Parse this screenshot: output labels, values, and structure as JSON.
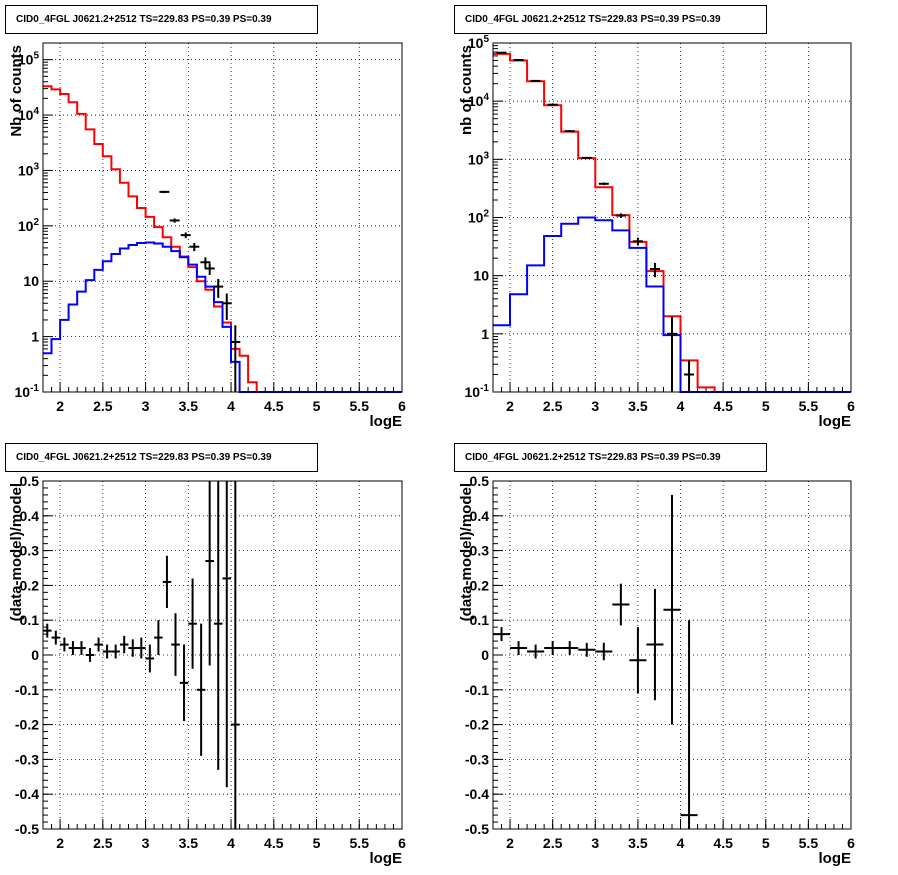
{
  "chart_data": [
    {
      "type": "histogram",
      "title": "CID0_4FGL J0621.2+2512 TS=229.83 PS=0.39 PS=0.39",
      "xlabel": "logE",
      "ylabel": "Nb of counts",
      "xlim": [
        1.8,
        6.0
      ],
      "ylim": [
        0.1,
        200000
      ],
      "yscale": "log",
      "grid": true,
      "x_ticks": [
        "2",
        "2.5",
        "3",
        "3.5",
        "4",
        "4.5",
        "5",
        "5.5",
        "6"
      ],
      "y_ticks": [
        "10^{-1}",
        "1",
        "10",
        "10^{2}",
        "10^{3}",
        "10^{4}",
        "10^{5}"
      ],
      "bin_edges": [
        1.8,
        1.9,
        2.0,
        2.1,
        2.2,
        2.3,
        2.4,
        2.5,
        2.6,
        2.7,
        2.8,
        2.9,
        3.0,
        3.1,
        3.2,
        3.3,
        3.4,
        3.5,
        3.6,
        3.7,
        3.8,
        3.9,
        4.0,
        4.1,
        4.2,
        4.3,
        4.4,
        4.5,
        4.6,
        4.7,
        4.8,
        4.9,
        5.0,
        5.1,
        5.2,
        5.3,
        5.4,
        5.5,
        5.6,
        5.7,
        5.8,
        5.9,
        6.0
      ],
      "series": [
        {
          "name": "model_total",
          "color": "#ff0000",
          "values": [
            33000,
            29000,
            24000,
            17000,
            10500,
            5500,
            3000,
            1800,
            1050,
            600,
            340,
            210,
            145,
            95,
            62,
            42,
            28,
            18,
            10,
            7,
            3.5,
            1.8,
            0.6,
            0.45,
            0.15,
            0.1,
            0.1,
            0.1,
            0.1,
            0.1,
            0.1,
            0.1,
            0.1,
            0.1,
            0.1,
            0.1,
            0.1,
            0.1,
            0.1,
            0.1,
            0.1,
            0.1
          ]
        },
        {
          "name": "model_source",
          "color": "#0000ff",
          "values": [
            0.5,
            0.9,
            2.0,
            3.8,
            6.5,
            10.5,
            16,
            23,
            31,
            39,
            45,
            49,
            50,
            48,
            42,
            35,
            27,
            20,
            12,
            8,
            4.2,
            1.5,
            0.35,
            0.08,
            0.1,
            0.1,
            0.1,
            0.1,
            0.1,
            0.1,
            0.1,
            0.1,
            0.1,
            0.1,
            0.1,
            0.1,
            0.1,
            0.1,
            0.1,
            0.1,
            0.1,
            0.1
          ]
        }
      ],
      "data_points": [
        {
          "x": 3.22,
          "y": 410,
          "yerr": 20
        },
        {
          "x": 3.34,
          "y": 125,
          "yerr": 11
        },
        {
          "x": 3.47,
          "y": 68,
          "yerr": 8
        },
        {
          "x": 3.57,
          "y": 42,
          "yerr": 7
        },
        {
          "x": 3.7,
          "y": 22,
          "yerr": 5
        },
        {
          "x": 3.75,
          "y": 17,
          "yerr": 4
        },
        {
          "x": 3.85,
          "y": 8,
          "yerr": 3
        },
        {
          "x": 3.95,
          "y": 4.0,
          "yerr": 2
        },
        {
          "x": 4.05,
          "y": 0.8,
          "yerr": 0.8
        }
      ]
    },
    {
      "type": "histogram",
      "title": "CID0_4FGL J0621.2+2512 TS=229.83 PS=0.39 PS=0.39",
      "xlabel": "logE",
      "ylabel": "nb of counts",
      "xlim": [
        1.8,
        6.0
      ],
      "ylim": [
        0.1,
        100000
      ],
      "yscale": "log",
      "grid": true,
      "x_ticks": [
        "2",
        "2.5",
        "3",
        "3.5",
        "4",
        "4.5",
        "5",
        "5.5",
        "6"
      ],
      "y_ticks": [
        "10^{-1}",
        "1",
        "10",
        "10^{2}",
        "10^{3}",
        "10^{4}",
        "10^{5}"
      ],
      "bin_edges": [
        1.8,
        2.0,
        2.2,
        2.4,
        2.6,
        2.8,
        3.0,
        3.2,
        3.4,
        3.6,
        3.8,
        4.0,
        4.2,
        4.4,
        4.6,
        4.8,
        5.0,
        5.2,
        5.4,
        5.6,
        5.8,
        6.0
      ],
      "series": [
        {
          "name": "model_total",
          "color": "#ff0000",
          "values": [
            65000,
            50000,
            22000,
            8500,
            3000,
            1050,
            330,
            110,
            38,
            12,
            2.0,
            0.35,
            0.12,
            0.1,
            0.1,
            0.1,
            0.1,
            0.1,
            0.1,
            0.1,
            0.1
          ]
        },
        {
          "name": "model_source",
          "color": "#0000ff",
          "values": [
            1.4,
            4.8,
            15,
            48,
            78,
            100,
            90,
            60,
            30,
            6.5,
            0.95,
            0.1,
            0.1,
            0.1,
            0.1,
            0.1,
            0.1,
            0.1,
            0.1,
            0.1,
            0.1
          ]
        }
      ],
      "data_points": [
        {
          "x": 1.9,
          "y": 68000,
          "yerr": 260
        },
        {
          "x": 2.1,
          "y": 51000,
          "yerr": 225
        },
        {
          "x": 2.3,
          "y": 22300,
          "yerr": 150
        },
        {
          "x": 2.5,
          "y": 8700,
          "yerr": 93
        },
        {
          "x": 2.7,
          "y": 3050,
          "yerr": 55
        },
        {
          "x": 2.9,
          "y": 1060,
          "yerr": 33
        },
        {
          "x": 3.1,
          "y": 380,
          "yerr": 19
        },
        {
          "x": 3.3,
          "y": 108,
          "yerr": 10
        },
        {
          "x": 3.5,
          "y": 39,
          "yerr": 6
        },
        {
          "x": 3.7,
          "y": 13,
          "yerr": 3.6
        },
        {
          "x": 3.9,
          "y": 1.0,
          "yerr": 0.99
        },
        {
          "x": 4.1,
          "y": 0.2,
          "yerr": 0.15
        }
      ]
    },
    {
      "type": "scatter",
      "title": "CID0_4FGL J0621.2+2512 TS=229.83 PS=0.39 PS=0.39",
      "xlabel": "logE",
      "ylabel": "(data-model)/model",
      "xlim": [
        1.8,
        6.0
      ],
      "ylim": [
        -0.5,
        0.5
      ],
      "grid": true,
      "x_ticks": [
        "2",
        "2.5",
        "3",
        "3.5",
        "4",
        "4.5",
        "5",
        "5.5",
        "6"
      ],
      "y_ticks": [
        "-0.5",
        "-0.4",
        "-0.3",
        "-0.2",
        "-0.1",
        "0",
        "0.1",
        "0.2",
        "0.3",
        "0.4",
        "0.5"
      ],
      "points": [
        {
          "x": 1.85,
          "y": 0.07,
          "yerr": 0.02,
          "xerr": 0.05
        },
        {
          "x": 1.95,
          "y": 0.05,
          "yerr": 0.02,
          "xerr": 0.05
        },
        {
          "x": 2.05,
          "y": 0.03,
          "yerr": 0.02,
          "xerr": 0.05
        },
        {
          "x": 2.15,
          "y": 0.02,
          "yerr": 0.02,
          "xerr": 0.05
        },
        {
          "x": 2.25,
          "y": 0.02,
          "yerr": 0.02,
          "xerr": 0.05
        },
        {
          "x": 2.35,
          "y": 0.0,
          "yerr": 0.02,
          "xerr": 0.05
        },
        {
          "x": 2.45,
          "y": 0.03,
          "yerr": 0.02,
          "xerr": 0.05
        },
        {
          "x": 2.55,
          "y": 0.01,
          "yerr": 0.02,
          "xerr": 0.05
        },
        {
          "x": 2.65,
          "y": 0.01,
          "yerr": 0.02,
          "xerr": 0.05
        },
        {
          "x": 2.75,
          "y": 0.03,
          "yerr": 0.025,
          "xerr": 0.05
        },
        {
          "x": 2.85,
          "y": 0.02,
          "yerr": 0.025,
          "xerr": 0.05
        },
        {
          "x": 2.95,
          "y": 0.02,
          "yerr": 0.03,
          "xerr": 0.05
        },
        {
          "x": 3.05,
          "y": -0.01,
          "yerr": 0.04,
          "xerr": 0.05
        },
        {
          "x": 3.15,
          "y": 0.05,
          "yerr": 0.05,
          "xerr": 0.05
        },
        {
          "x": 3.25,
          "y": 0.21,
          "yerr": 0.075,
          "xerr": 0.05
        },
        {
          "x": 3.35,
          "y": 0.03,
          "yerr": 0.09,
          "xerr": 0.05
        },
        {
          "x": 3.45,
          "y": -0.08,
          "yerr": 0.11,
          "xerr": 0.05
        },
        {
          "x": 3.55,
          "y": 0.09,
          "yerr": 0.13,
          "xerr": 0.05
        },
        {
          "x": 3.65,
          "y": -0.1,
          "yerr": 0.19,
          "xerr": 0.05
        },
        {
          "x": 3.75,
          "y": 0.27,
          "yerr": 0.3,
          "xerr": 0.05
        },
        {
          "x": 3.85,
          "y": 0.09,
          "yerr": 0.42,
          "xerr": 0.05
        },
        {
          "x": 3.95,
          "y": 0.22,
          "yerr": 0.6,
          "xerr": 0.05
        },
        {
          "x": 4.05,
          "y": -0.2,
          "yerr": 0.8,
          "xerr": 0.05
        }
      ]
    },
    {
      "type": "scatter",
      "title": "CID0_4FGL J0621.2+2512 TS=229.83 PS=0.39 PS=0.39",
      "xlabel": "logE",
      "ylabel": "(data-model)/model",
      "xlim": [
        1.8,
        6.0
      ],
      "ylim": [
        -0.5,
        0.5
      ],
      "grid": true,
      "x_ticks": [
        "2",
        "2.5",
        "3",
        "3.5",
        "4",
        "4.5",
        "5",
        "5.5",
        "6"
      ],
      "y_ticks": [
        "-0.5",
        "-0.4",
        "-0.3",
        "-0.2",
        "-0.1",
        "0",
        "0.1",
        "0.2",
        "0.3",
        "0.4",
        "0.5"
      ],
      "points": [
        {
          "x": 1.9,
          "y": 0.06,
          "yerr": 0.02,
          "xerr": 0.1
        },
        {
          "x": 2.1,
          "y": 0.02,
          "yerr": 0.02,
          "xerr": 0.1
        },
        {
          "x": 2.3,
          "y": 0.01,
          "yerr": 0.02,
          "xerr": 0.1
        },
        {
          "x": 2.5,
          "y": 0.02,
          "yerr": 0.02,
          "xerr": 0.1
        },
        {
          "x": 2.7,
          "y": 0.02,
          "yerr": 0.02,
          "xerr": 0.1
        },
        {
          "x": 2.9,
          "y": 0.015,
          "yerr": 0.02,
          "xerr": 0.1
        },
        {
          "x": 3.1,
          "y": 0.01,
          "yerr": 0.025,
          "xerr": 0.1
        },
        {
          "x": 3.3,
          "y": 0.145,
          "yerr": 0.06,
          "xerr": 0.1
        },
        {
          "x": 3.5,
          "y": -0.015,
          "yerr": 0.095,
          "xerr": 0.1
        },
        {
          "x": 3.7,
          "y": 0.03,
          "yerr": 0.16,
          "xerr": 0.1
        },
        {
          "x": 3.9,
          "y": 0.13,
          "yerr": 0.33,
          "xerr": 0.1
        },
        {
          "x": 4.1,
          "y": -0.46,
          "yerr": 0.56,
          "xerr": 0.1
        }
      ]
    }
  ]
}
